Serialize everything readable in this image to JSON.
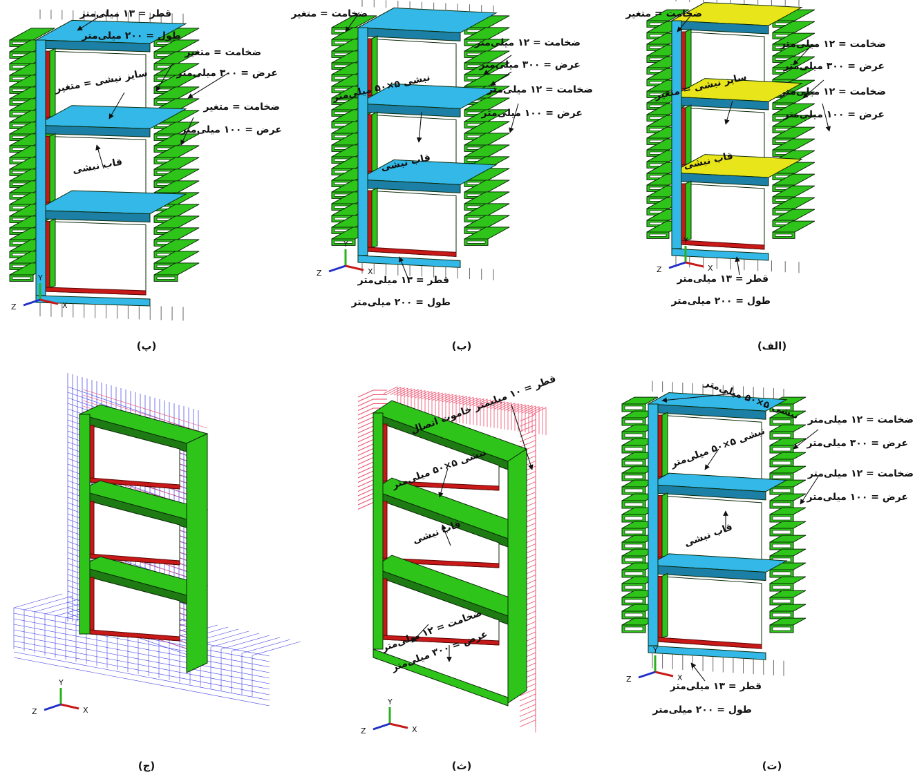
{
  "colors": {
    "green": "#2ec41a",
    "greenDark": "#1e7a12",
    "blue": "#33b8e8",
    "blueDark": "#1b7fa6",
    "red": "#c81818",
    "yellow": "#e8e61a",
    "wireBlue": "#3a3ae8",
    "wirePink": "#ee4a6a"
  },
  "captions": {
    "p": "(پ)",
    "b": "(ب)",
    "alef": "(الف)",
    "j": "(ج)",
    "th": "(ث)",
    "t": "(ت)"
  },
  "panel_p": {
    "l1": "قطر = ۱۳ میلی‌متر",
    "l2": "طول = ۲۰۰ میلی‌متر",
    "l3": "ضخامت = متغیر",
    "l4": "عرض = ۳۰۰ میلی‌متر",
    "l5": "سایز نبشی = متغیر",
    "l6": "ضخامت = متغیر",
    "l7": "عرض = ۱۰۰ میلی‌متر",
    "l8": "قاب نبشی"
  },
  "panel_b": {
    "l1": "ضخامت = متغیر",
    "l2": "ضخامت = ۱۲ میلی‌متر",
    "l3": "عرض = ۳۰۰ میلی‌متر",
    "l4": "نبشی ۵×۵۰ میلی‌متر",
    "l5": "ضخامت = ۱۲ میلی‌متر",
    "l6": "عرض = ۱۰۰ میلی‌متر",
    "l7": "قاب نبشی",
    "l8": "قطر = ۱۳ میلی‌متر",
    "l9": "طول = ۲۰۰ میلی‌متر"
  },
  "panel_alef": {
    "l1": "ضخامت = متغیر",
    "l2": "ضخامت = ۱۲ میلی‌متر",
    "l3": "عرض = ۳۰۰ میلی‌متر",
    "l4": "سایز نبشی = متغیر",
    "l5": "ضخامت = ۱۲ میلی‌متر",
    "l6": "عرض = ۱۰۰ میلی‌متر",
    "l7": "قاب نبشی",
    "l8": "قطر = ۱۳ میلی‌متر",
    "l9": "طول = ۲۰۰ میلی‌متر"
  },
  "panel_th": {
    "l1": "قطر = ۱۰ میلیمتر خاموت اتصال",
    "l2": "نبشی ۵×۵۰ میلی‌متر",
    "l3": "قاب نبشی",
    "l4": "ضخامت = ۱۲ میلی‌متر",
    "l5": "عرض = ۳۰۰ میلی‌متر"
  },
  "panel_t": {
    "l1": "نبشی ۵×۵۰ میلی‌متر",
    "l2": "ضخامت = ۱۲ میلی‌متر",
    "l3": "عرض = ۳۰۰ میلی‌متر",
    "l4": "نبشی ۵×۵۰ میلی‌متر",
    "l5": "ضخامت = ۱۲ میلی‌متر",
    "l6": "عرض = ۱۰۰ میلی‌متر",
    "l7": "قاب نبشی",
    "l8": "قطر = ۱۳ میلی‌متر",
    "l9": "طول = ۲۰۰ میلی‌متر"
  },
  "axes": {
    "x": "X",
    "y": "Y",
    "z": "Z"
  }
}
